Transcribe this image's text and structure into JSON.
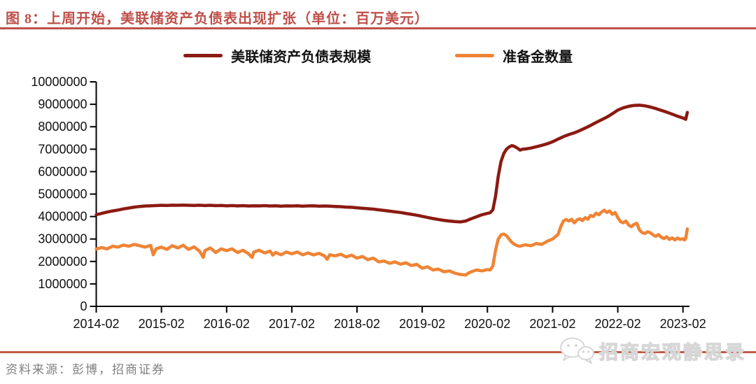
{
  "figure": {
    "title": "图 8：上周开始，美联储资产负债表出现扩张（单位：百万美元）",
    "source_note": "资料来源：彭博，招商证券",
    "watermark": "招商宏观静思录"
  },
  "colors": {
    "title_accent": "#bf4f49",
    "rule_top": "#bf4f49",
    "rule_bottom": "#c05a45",
    "axis": "#000000",
    "series_balance_sheet": "#8b1a12",
    "series_reserves": "#ef8435",
    "source_text": "#7f7f7f",
    "watermark_gray": "#d7d7d7"
  },
  "chart_data": {
    "type": "line",
    "title": "图 8：上周开始，美联储资产负债表出现扩张",
    "unit": "百万美元",
    "grid": false,
    "legend_position": "top-center",
    "x_axis": {
      "tick_labels": [
        "2014-02",
        "2015-02",
        "2016-02",
        "2017-02",
        "2018-02",
        "2019-02",
        "2020-02",
        "2021-02",
        "2022-02",
        "2023-02"
      ],
      "tick_months": [
        0,
        12,
        24,
        36,
        48,
        60,
        72,
        84,
        96,
        108
      ],
      "month_min": 0,
      "month_max": 109.2
    },
    "y_axis": {
      "min": 0,
      "max": 10000000,
      "step": 1000000,
      "tick_values": [
        0,
        1000000,
        2000000,
        3000000,
        4000000,
        5000000,
        6000000,
        7000000,
        8000000,
        9000000,
        10000000
      ],
      "tick_labels": [
        "0",
        "1000000",
        "2000000",
        "3000000",
        "4000000",
        "5000000",
        "6000000",
        "7000000",
        "8000000",
        "9000000",
        "10000000"
      ]
    },
    "series": [
      {
        "name": "美联储资产负债表规模",
        "color_key": "series_balance_sheet",
        "points": [
          [
            0,
            4080000
          ],
          [
            1,
            4140000
          ],
          [
            2,
            4200000
          ],
          [
            3,
            4250000
          ],
          [
            4,
            4290000
          ],
          [
            5,
            4340000
          ],
          [
            6,
            4380000
          ],
          [
            7,
            4420000
          ],
          [
            8,
            4450000
          ],
          [
            9,
            4470000
          ],
          [
            10,
            4480000
          ],
          [
            11,
            4490000
          ],
          [
            12,
            4500000
          ],
          [
            13,
            4495000
          ],
          [
            14,
            4505000
          ],
          [
            15,
            4500000
          ],
          [
            16,
            4510000
          ],
          [
            17,
            4500000
          ],
          [
            18,
            4495000
          ],
          [
            19,
            4505000
          ],
          [
            20,
            4490000
          ],
          [
            21,
            4500000
          ],
          [
            22,
            4485000
          ],
          [
            23,
            4495000
          ],
          [
            24,
            4480000
          ],
          [
            25,
            4490000
          ],
          [
            26,
            4475000
          ],
          [
            27,
            4485000
          ],
          [
            28,
            4470000
          ],
          [
            29,
            4480000
          ],
          [
            30,
            4475000
          ],
          [
            31,
            4485000
          ],
          [
            32,
            4470000
          ],
          [
            33,
            4480000
          ],
          [
            34,
            4465000
          ],
          [
            35,
            4475000
          ],
          [
            36,
            4470000
          ],
          [
            37,
            4478000
          ],
          [
            38,
            4465000
          ],
          [
            39,
            4472000
          ],
          [
            40,
            4478000
          ],
          [
            41,
            4465000
          ],
          [
            42,
            4470000
          ],
          [
            43,
            4460000
          ],
          [
            44,
            4450000
          ],
          [
            45,
            4440000
          ],
          [
            46,
            4420000
          ],
          [
            47,
            4410000
          ],
          [
            48,
            4390000
          ],
          [
            49,
            4370000
          ],
          [
            50,
            4350000
          ],
          [
            51,
            4330000
          ],
          [
            52,
            4300000
          ],
          [
            53,
            4270000
          ],
          [
            54,
            4240000
          ],
          [
            55,
            4210000
          ],
          [
            56,
            4180000
          ],
          [
            57,
            4140000
          ],
          [
            58,
            4100000
          ],
          [
            59,
            4060000
          ],
          [
            60,
            4010000
          ],
          [
            61,
            3960000
          ],
          [
            62,
            3910000
          ],
          [
            63,
            3870000
          ],
          [
            64,
            3830000
          ],
          [
            65,
            3800000
          ],
          [
            66,
            3775000
          ],
          [
            67,
            3760000
          ],
          [
            68,
            3800000
          ],
          [
            69,
            3900000
          ],
          [
            70,
            3990000
          ],
          [
            71,
            4080000
          ],
          [
            72,
            4140000
          ],
          [
            72.5,
            4170000
          ],
          [
            73,
            4300000
          ],
          [
            73.5,
            4900000
          ],
          [
            74,
            5800000
          ],
          [
            74.5,
            6450000
          ],
          [
            75,
            6800000
          ],
          [
            75.5,
            7000000
          ],
          [
            76,
            7100000
          ],
          [
            76.5,
            7160000
          ],
          [
            77,
            7120000
          ],
          [
            77.5,
            7050000
          ],
          [
            78,
            6960000
          ],
          [
            78.5,
            7000000
          ],
          [
            79,
            7010000
          ],
          [
            80,
            7050000
          ],
          [
            81,
            7110000
          ],
          [
            82,
            7170000
          ],
          [
            83,
            7240000
          ],
          [
            84,
            7330000
          ],
          [
            85,
            7450000
          ],
          [
            86,
            7560000
          ],
          [
            87,
            7650000
          ],
          [
            88,
            7730000
          ],
          [
            89,
            7830000
          ],
          [
            90,
            7940000
          ],
          [
            91,
            8060000
          ],
          [
            92,
            8190000
          ],
          [
            93,
            8310000
          ],
          [
            94,
            8430000
          ],
          [
            95,
            8580000
          ],
          [
            96,
            8740000
          ],
          [
            97,
            8840000
          ],
          [
            98,
            8910000
          ],
          [
            99,
            8950000
          ],
          [
            100,
            8960000
          ],
          [
            101,
            8930000
          ],
          [
            102,
            8880000
          ],
          [
            103,
            8810000
          ],
          [
            104,
            8730000
          ],
          [
            105,
            8650000
          ],
          [
            106,
            8560000
          ],
          [
            107,
            8470000
          ],
          [
            108,
            8390000
          ],
          [
            108.5,
            8330000
          ],
          [
            108.8,
            8640000
          ]
        ]
      },
      {
        "name": "准备金数量",
        "color_key": "series_reserves",
        "points": [
          [
            0,
            2550000
          ],
          [
            1,
            2620000
          ],
          [
            2,
            2560000
          ],
          [
            3,
            2680000
          ],
          [
            4,
            2640000
          ],
          [
            5,
            2730000
          ],
          [
            6,
            2680000
          ],
          [
            7,
            2760000
          ],
          [
            8,
            2700000
          ],
          [
            9,
            2640000
          ],
          [
            10,
            2720000
          ],
          [
            10.5,
            2300000
          ],
          [
            11,
            2560000
          ],
          [
            12,
            2640000
          ],
          [
            13,
            2540000
          ],
          [
            14,
            2700000
          ],
          [
            15,
            2600000
          ],
          [
            16,
            2720000
          ],
          [
            17,
            2540000
          ],
          [
            18,
            2650000
          ],
          [
            19,
            2460000
          ],
          [
            19.7,
            2180000
          ],
          [
            20,
            2480000
          ],
          [
            21,
            2600000
          ],
          [
            22,
            2400000
          ],
          [
            23,
            2560000
          ],
          [
            24,
            2480000
          ],
          [
            25,
            2560000
          ],
          [
            26,
            2400000
          ],
          [
            27,
            2500000
          ],
          [
            28,
            2350000
          ],
          [
            28.7,
            2180000
          ],
          [
            29,
            2420000
          ],
          [
            30,
            2500000
          ],
          [
            31,
            2380000
          ],
          [
            32,
            2460000
          ],
          [
            32.5,
            2280000
          ],
          [
            33,
            2400000
          ],
          [
            34,
            2300000
          ],
          [
            35,
            2420000
          ],
          [
            36,
            2340000
          ],
          [
            37,
            2420000
          ],
          [
            38,
            2300000
          ],
          [
            39,
            2380000
          ],
          [
            40,
            2290000
          ],
          [
            41,
            2360000
          ],
          [
            42,
            2250000
          ],
          [
            42.5,
            2100000
          ],
          [
            43,
            2300000
          ],
          [
            44,
            2250000
          ],
          [
            45,
            2320000
          ],
          [
            46,
            2200000
          ],
          [
            47,
            2280000
          ],
          [
            48,
            2150000
          ],
          [
            49,
            2220000
          ],
          [
            50,
            2080000
          ],
          [
            51,
            2150000
          ],
          [
            52,
            1980000
          ],
          [
            53,
            2020000
          ],
          [
            54,
            1920000
          ],
          [
            55,
            1980000
          ],
          [
            56,
            1880000
          ],
          [
            57,
            1940000
          ],
          [
            58,
            1820000
          ],
          [
            59,
            1870000
          ],
          [
            60,
            1700000
          ],
          [
            61,
            1760000
          ],
          [
            62,
            1620000
          ],
          [
            63,
            1660000
          ],
          [
            64,
            1540000
          ],
          [
            65,
            1580000
          ],
          [
            66,
            1480000
          ],
          [
            67,
            1420000
          ],
          [
            68,
            1400000
          ],
          [
            68.5,
            1480000
          ],
          [
            69,
            1540000
          ],
          [
            70,
            1620000
          ],
          [
            71,
            1580000
          ],
          [
            72,
            1640000
          ],
          [
            72.5,
            1620000
          ],
          [
            73,
            1800000
          ],
          [
            73.5,
            2500000
          ],
          [
            74,
            3000000
          ],
          [
            74.5,
            3180000
          ],
          [
            75,
            3220000
          ],
          [
            75.5,
            3150000
          ],
          [
            76,
            3000000
          ],
          [
            76.5,
            2850000
          ],
          [
            77,
            2760000
          ],
          [
            77.5,
            2700000
          ],
          [
            78,
            2680000
          ],
          [
            79,
            2740000
          ],
          [
            80,
            2700000
          ],
          [
            81,
            2800000
          ],
          [
            82,
            2760000
          ],
          [
            83,
            2900000
          ],
          [
            84,
            3000000
          ],
          [
            84.5,
            3100000
          ],
          [
            85,
            3200000
          ],
          [
            85.5,
            3550000
          ],
          [
            86,
            3800000
          ],
          [
            86.5,
            3870000
          ],
          [
            87,
            3800000
          ],
          [
            87.5,
            3880000
          ],
          [
            88,
            3720000
          ],
          [
            88.5,
            3850000
          ],
          [
            89,
            3900000
          ],
          [
            89.5,
            3820000
          ],
          [
            90,
            3950000
          ],
          [
            90.5,
            3880000
          ],
          [
            91,
            4050000
          ],
          [
            91.5,
            4000000
          ],
          [
            92,
            4150000
          ],
          [
            92.5,
            4080000
          ],
          [
            93,
            4200000
          ],
          [
            93.5,
            4280000
          ],
          [
            94,
            4180000
          ],
          [
            94.5,
            4250000
          ],
          [
            95,
            4100000
          ],
          [
            95.5,
            4180000
          ],
          [
            96,
            3950000
          ],
          [
            96.5,
            3780000
          ],
          [
            97,
            3720000
          ],
          [
            97.5,
            3800000
          ],
          [
            98,
            3620000
          ],
          [
            98.5,
            3550000
          ],
          [
            99,
            3650000
          ],
          [
            99.5,
            3700000
          ],
          [
            100,
            3400000
          ],
          [
            100.5,
            3280000
          ],
          [
            101,
            3250000
          ],
          [
            101.5,
            3320000
          ],
          [
            102,
            3280000
          ],
          [
            102.5,
            3180000
          ],
          [
            103,
            3120000
          ],
          [
            103.5,
            3200000
          ],
          [
            104,
            3080000
          ],
          [
            104.5,
            3020000
          ],
          [
            105,
            3100000
          ],
          [
            105.5,
            2980000
          ],
          [
            106,
            3050000
          ],
          [
            106.5,
            2960000
          ],
          [
            107,
            3040000
          ],
          [
            107.5,
            2980000
          ],
          [
            108,
            3010000
          ],
          [
            108.3,
            2960000
          ],
          [
            108.5,
            3020000
          ],
          [
            108.8,
            3450000
          ]
        ]
      }
    ]
  }
}
